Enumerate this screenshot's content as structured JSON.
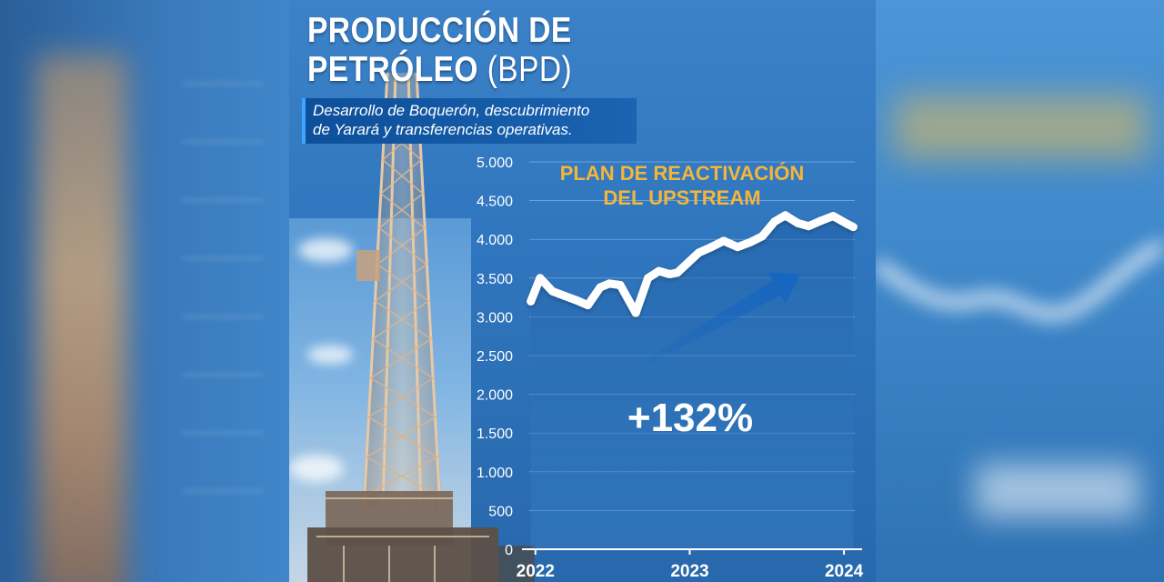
{
  "title_line1": "PRODUCCIÓN DE",
  "title_line2": "PETRÓLEO",
  "title_unit": "(BPD)",
  "subtitle_line1": "Desarrollo de Boquerón, descubrimiento",
  "subtitle_line2": "de Yarará y transferencias operativas.",
  "colors": {
    "accent": "#f4b63a",
    "line": "#ffffff",
    "arrow": "#1565c0",
    "background": "#2f75bd"
  },
  "chart_data": {
    "type": "line",
    "title": "PLAN DE REACTIVACIÓN DEL UPSTREAM",
    "annotation_lines": [
      "PLAN DE REACTIVACIÓN",
      "DEL UPSTREAM"
    ],
    "growth_label": "+132%",
    "ylim": [
      0,
      5000
    ],
    "y_ticks": [
      0,
      500,
      1000,
      1500,
      2000,
      2500,
      3000,
      3500,
      4000,
      4500,
      5000
    ],
    "y_tick_labels": [
      "0",
      "500",
      "1.000",
      "1.500",
      "2.000",
      "2.500",
      "3.000",
      "3.500",
      "4.000",
      "4.500",
      "5.000"
    ],
    "x_ticks": [
      2022,
      2023,
      2024
    ],
    "x_tick_labels": [
      "2022",
      "2023",
      "2024"
    ],
    "xlim": [
      2021.96,
      2024.07
    ],
    "grid": true,
    "series": [
      {
        "x": [
          2021.97,
          2022.03,
          2022.11,
          2022.19,
          2022.27,
          2022.34,
          2022.42,
          2022.48,
          2022.55,
          2022.65,
          2022.73,
          2022.8,
          2022.87,
          2022.92,
          2023.0,
          2023.06,
          2023.14,
          2023.22,
          2023.31,
          2023.39,
          2023.47,
          2023.55,
          2023.62,
          2023.7,
          2023.77,
          2023.85,
          2023.93,
          2024.02,
          2024.06
        ],
        "y": [
          3200,
          3500,
          3330,
          3270,
          3210,
          3150,
          3380,
          3430,
          3410,
          3050,
          3500,
          3590,
          3550,
          3570,
          3720,
          3830,
          3900,
          3980,
          3900,
          3960,
          4040,
          4230,
          4310,
          4210,
          4170,
          4240,
          4300,
          4200,
          4160
        ]
      }
    ]
  }
}
